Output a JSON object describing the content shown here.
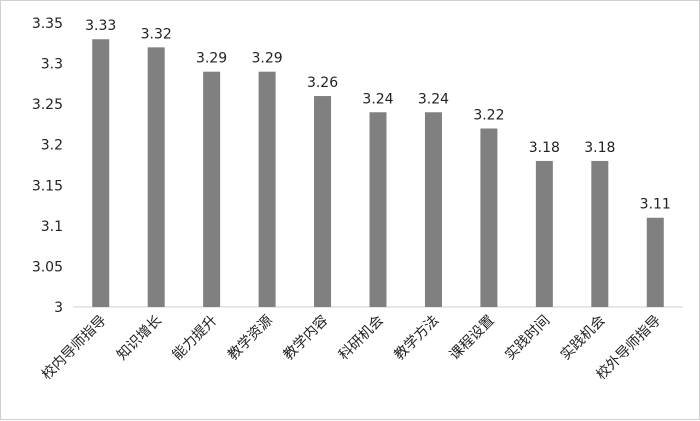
{
  "chart_data": {
    "type": "bar",
    "title": "",
    "xlabel": "",
    "ylabel": "",
    "ylim": [
      3,
      3.35
    ],
    "yticks": [
      "3",
      "3.05",
      "3.1",
      "3.15",
      "3.2",
      "3.25",
      "3.3",
      "3.35"
    ],
    "ytick_values": [
      3,
      3.05,
      3.1,
      3.15,
      3.2,
      3.25,
      3.3,
      3.35
    ],
    "grid": false,
    "bar_color": "#808080",
    "categories": [
      "校内导师指导",
      "知识增长",
      "能力提升",
      "教学资源",
      "教学内容",
      "科研机会",
      "教学方法",
      "课程设置",
      "实践时间",
      "实践机会",
      "校外导师指导"
    ],
    "values": [
      3.33,
      3.32,
      3.29,
      3.29,
      3.26,
      3.24,
      3.24,
      3.22,
      3.18,
      3.18,
      3.11
    ],
    "data_labels": [
      "3.33",
      "3.32",
      "3.29",
      "3.29",
      "3.26",
      "3.24",
      "3.24",
      "3.22",
      "3.18",
      "3.18",
      "3.11"
    ]
  }
}
